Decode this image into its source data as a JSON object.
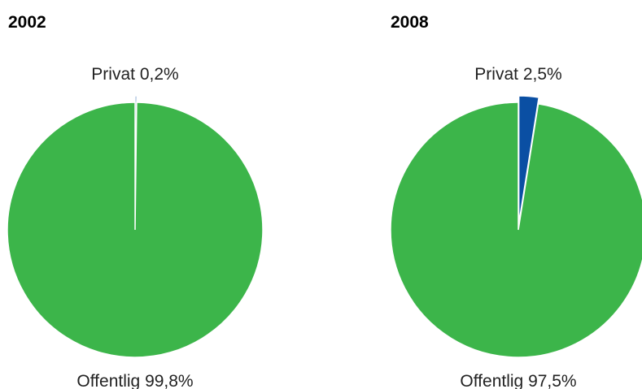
{
  "chart_data": [
    {
      "type": "pie",
      "title": "2002",
      "categories": [
        "Privat",
        "Offentlig"
      ],
      "values": [
        0.2,
        99.8
      ],
      "value_labels": [
        "0,2%",
        "99,8%"
      ],
      "colors": [
        "#0a4fa3",
        "#3cb54a"
      ]
    },
    {
      "type": "pie",
      "title": "2008",
      "categories": [
        "Privat",
        "Offentlig"
      ],
      "values": [
        2.5,
        97.5
      ],
      "value_labels": [
        "2,5%",
        "97,5%"
      ],
      "colors": [
        "#0a4fa3",
        "#3cb54a"
      ]
    }
  ]
}
